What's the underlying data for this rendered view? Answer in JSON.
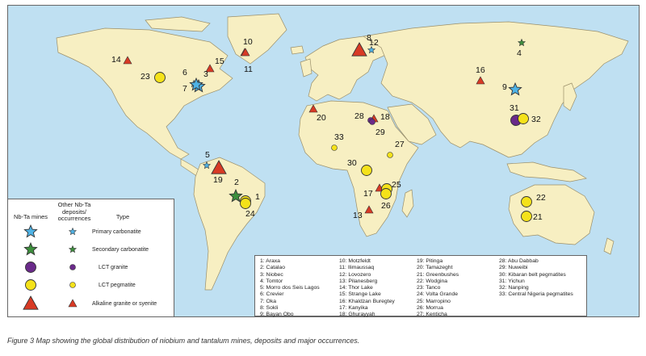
{
  "colors": {
    "ocean": "#bfe0f2",
    "land": "#f7efc2",
    "border": "#9a8f6a",
    "carbonatite_primary": "#4fb3e6",
    "carbonatite_secondary": "#3d8f3d",
    "lct_granite": "#6a2a8a",
    "lct_pegmatite": "#f5e21a",
    "alkaline": "#d83a25"
  },
  "legend": {
    "col_mines": "Nb-Ta mines",
    "col_other": "Other Nb-Ta deposits/ occurrences",
    "col_type": "Type",
    "rows": [
      {
        "label": "Primary carbonatite",
        "icon": "star-icon"
      },
      {
        "label": "Secondary carbonatite",
        "icon": "star-icon"
      },
      {
        "label": "LCT granite",
        "icon": "circle-icon"
      },
      {
        "label": "LCT pegmatite",
        "icon": "circle-icon"
      },
      {
        "label": "Alkaline granite or syenite",
        "icon": "triangle-icon"
      }
    ]
  },
  "sites": [
    {
      "num": "1",
      "type": "lct_pegmatite",
      "mine": true
    },
    {
      "num": "2",
      "type": "secondary_carbonatite",
      "mine": true
    },
    {
      "num": "3",
      "type": "primary_carbonatite",
      "mine": true
    },
    {
      "num": "4",
      "type": "secondary_carbonatite",
      "mine": false
    },
    {
      "num": "5",
      "type": "primary_carbonatite",
      "mine": false
    },
    {
      "num": "6",
      "type": "primary_carbonatite",
      "mine": false
    },
    {
      "num": "7",
      "type": "primary_carbonatite",
      "mine": true
    },
    {
      "num": "8",
      "type": "primary_carbonatite",
      "mine": false
    },
    {
      "num": "9",
      "type": "primary_carbonatite",
      "mine": true
    },
    {
      "num": "10",
      "type": "alkaline",
      "mine": false
    },
    {
      "num": "11",
      "type": "alkaline",
      "mine": false
    },
    {
      "num": "12",
      "type": "alkaline",
      "mine": true
    },
    {
      "num": "13",
      "type": "alkaline",
      "mine": false
    },
    {
      "num": "14",
      "type": "alkaline",
      "mine": false
    },
    {
      "num": "15",
      "type": "alkaline",
      "mine": false
    },
    {
      "num": "16",
      "type": "alkaline",
      "mine": false
    },
    {
      "num": "17",
      "type": "alkaline",
      "mine": false
    },
    {
      "num": "18",
      "type": "alkaline",
      "mine": false
    },
    {
      "num": "19",
      "type": "alkaline",
      "mine": true
    },
    {
      "num": "20",
      "type": "alkaline",
      "mine": false
    },
    {
      "num": "21",
      "type": "lct_pegmatite",
      "mine": true
    },
    {
      "num": "22",
      "type": "lct_pegmatite",
      "mine": true
    },
    {
      "num": "23",
      "type": "lct_pegmatite",
      "mine": true
    },
    {
      "num": "24",
      "type": "lct_pegmatite",
      "mine": true
    },
    {
      "num": "25",
      "type": "lct_pegmatite",
      "mine": true
    },
    {
      "num": "26",
      "type": "lct_pegmatite",
      "mine": true
    },
    {
      "num": "27",
      "type": "lct_pegmatite",
      "mine": false
    },
    {
      "num": "28",
      "type": "lct_granite",
      "mine": false
    },
    {
      "num": "29",
      "type": "lct_granite",
      "mine": false
    },
    {
      "num": "30",
      "type": "lct_pegmatite",
      "mine": true
    },
    {
      "num": "31",
      "type": "lct_granite",
      "mine": true
    },
    {
      "num": "32",
      "type": "lct_pegmatite",
      "mine": true
    },
    {
      "num": "33",
      "type": "lct_pegmatite",
      "mine": false
    }
  ],
  "key": {
    "col1": [
      "1: Araxa",
      "2: Catalao",
      "3: Niobec",
      "4: Tomtor",
      "5: Morro dos Seis Lagos",
      "6: Crevier",
      "7: Oka",
      "8: Sokli",
      "9: Bayan Obo"
    ],
    "col2": [
      "10: Motzfeldt",
      "11: Ilimaussaq",
      "12: Lovozero",
      "13: Pilanesberg",
      "14: Thor Lake",
      "15: Strange Lake",
      "16: Khaldzan Buregtey",
      "17: Kanyika",
      "18: Ghurayyah"
    ],
    "col3": [
      "19: Pitinga",
      "20: Tamazeght",
      "21: Greenbushes",
      "22: Wodgina",
      "23: Tanco",
      "24: Volta Grande",
      "25: Marropino",
      "26: Morrua",
      "27: Kenticha"
    ],
    "col4": [
      "28: Abu Dabbab",
      "29: Nuweibi",
      "30: Kibaran belt pegmatites",
      "31: Yichun",
      "32: Nanping",
      "33: Central Nigeria pegmatites"
    ]
  },
  "caption": "Figure 3    Map showing the global distribution of niobium and tantalum mines, deposits and major occurrences."
}
